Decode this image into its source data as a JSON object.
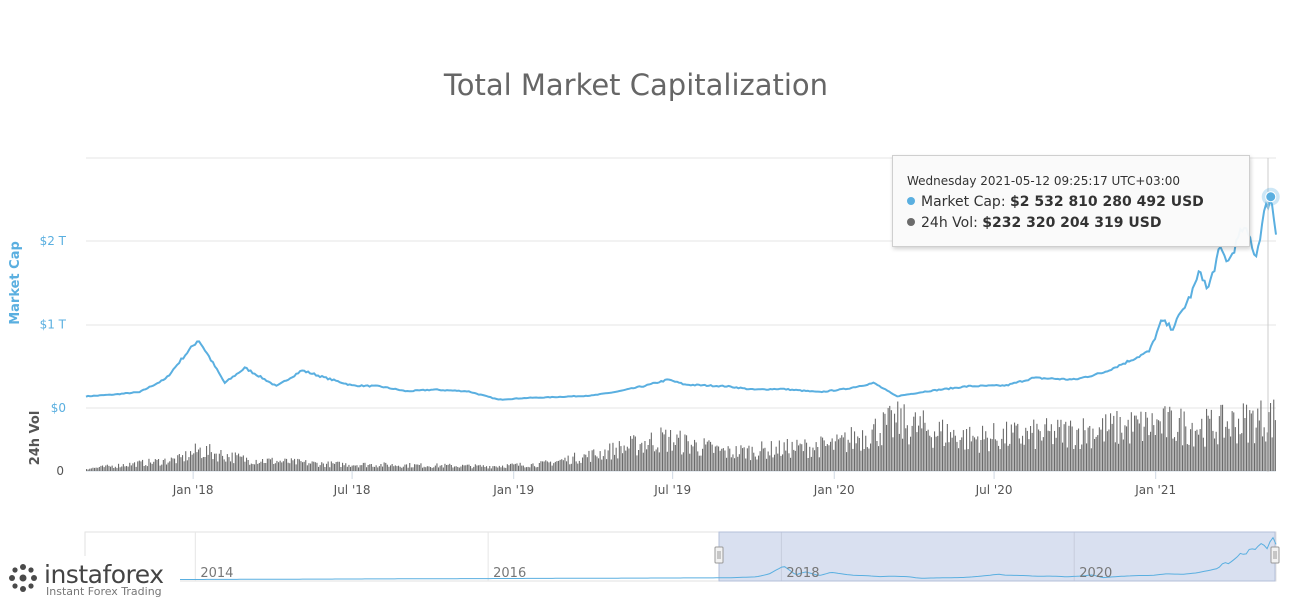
{
  "chart_data": {
    "type": "line",
    "title": "Total Market Capitalization",
    "yAxis_cap": {
      "label": "Market Cap",
      "ticks": [
        "$0",
        "$1 T",
        "$2 T"
      ],
      "range": [
        0,
        2.8
      ]
    },
    "yAxis_vol": {
      "label": "24h Vol",
      "ticks": [
        "0"
      ]
    },
    "xAxis": {
      "labels": [
        "Jan '18",
        "Jul '18",
        "Jan '19",
        "Jul '19",
        "Jan '20",
        "Jul '20",
        "Jan '21"
      ]
    },
    "series": [
      {
        "name": "Market Cap",
        "color": "#5aafe0",
        "points": [
          [
            "2017-09-01",
            0.14
          ],
          [
            "2017-10-01",
            0.16
          ],
          [
            "2017-11-01",
            0.19
          ],
          [
            "2017-12-01",
            0.35
          ],
          [
            "2017-12-20",
            0.6
          ],
          [
            "2018-01-07",
            0.82
          ],
          [
            "2018-01-20",
            0.6
          ],
          [
            "2018-02-06",
            0.3
          ],
          [
            "2018-03-01",
            0.48
          ],
          [
            "2018-04-06",
            0.26
          ],
          [
            "2018-05-05",
            0.45
          ],
          [
            "2018-06-01",
            0.36
          ],
          [
            "2018-07-01",
            0.27
          ],
          [
            "2018-08-01",
            0.26
          ],
          [
            "2018-09-01",
            0.2
          ],
          [
            "2018-10-01",
            0.22
          ],
          [
            "2018-11-10",
            0.2
          ],
          [
            "2018-12-15",
            0.1
          ],
          [
            "2019-01-15",
            0.12
          ],
          [
            "2019-02-15",
            0.13
          ],
          [
            "2019-04-01",
            0.15
          ],
          [
            "2019-05-01",
            0.2
          ],
          [
            "2019-06-01",
            0.27
          ],
          [
            "2019-06-26",
            0.34
          ],
          [
            "2019-07-15",
            0.28
          ],
          [
            "2019-09-01",
            0.26
          ],
          [
            "2019-10-01",
            0.22
          ],
          [
            "2019-11-01",
            0.23
          ],
          [
            "2019-12-15",
            0.19
          ],
          [
            "2020-01-15",
            0.23
          ],
          [
            "2020-02-15",
            0.3
          ],
          [
            "2020-03-12",
            0.14
          ],
          [
            "2020-04-15",
            0.2
          ],
          [
            "2020-06-01",
            0.26
          ],
          [
            "2020-07-15",
            0.27
          ],
          [
            "2020-08-15",
            0.36
          ],
          [
            "2020-10-01",
            0.34
          ],
          [
            "2020-11-01",
            0.42
          ],
          [
            "2020-12-01",
            0.56
          ],
          [
            "2020-12-25",
            0.68
          ],
          [
            "2021-01-08",
            1.05
          ],
          [
            "2021-01-20",
            0.95
          ],
          [
            "2021-02-10",
            1.35
          ],
          [
            "2021-02-21",
            1.65
          ],
          [
            "2021-03-01",
            1.4
          ],
          [
            "2021-03-15",
            1.9
          ],
          [
            "2021-03-25",
            1.75
          ],
          [
            "2021-04-10",
            2.15
          ],
          [
            "2021-04-18",
            2.05
          ],
          [
            "2021-04-25",
            1.8
          ],
          [
            "2021-05-05",
            2.35
          ],
          [
            "2021-05-12",
            2.53
          ],
          [
            "2021-05-18",
            2.1
          ]
        ]
      },
      {
        "name": "24h Vol",
        "color": "#6b6b6b",
        "points": [
          [
            "2017-09-01",
            0.01
          ],
          [
            "2017-12-15",
            0.05
          ],
          [
            "2018-01-07",
            0.09
          ],
          [
            "2018-03-01",
            0.05
          ],
          [
            "2018-06-01",
            0.03
          ],
          [
            "2018-12-01",
            0.02
          ],
          [
            "2019-02-01",
            0.03
          ],
          [
            "2019-04-01",
            0.07
          ],
          [
            "2019-06-20",
            0.14
          ],
          [
            "2019-09-01",
            0.08
          ],
          [
            "2020-01-01",
            0.11
          ],
          [
            "2020-03-12",
            0.21
          ],
          [
            "2020-06-01",
            0.14
          ],
          [
            "2020-09-01",
            0.16
          ],
          [
            "2021-01-08",
            0.2
          ],
          [
            "2021-03-01",
            0.19
          ],
          [
            "2021-05-12",
            0.23
          ]
        ]
      }
    ]
  },
  "tooltip": {
    "date": "Wednesday 2021-05-12 09:25:17 UTC+03:00",
    "market_cap_label": "Market Cap: ",
    "market_cap_value": "$2 532 810 280 492 USD",
    "vol_label": "24h Vol: ",
    "vol_value": "$232 320 204 319 USD"
  },
  "navigator": {
    "labels": [
      "2014",
      "2016",
      "2018",
      "2020"
    ],
    "selected_range": [
      "2017-09-01",
      "2021-05-18"
    ]
  },
  "logo": {
    "name": "instaforex",
    "tagline": "Instant Forex Trading"
  }
}
